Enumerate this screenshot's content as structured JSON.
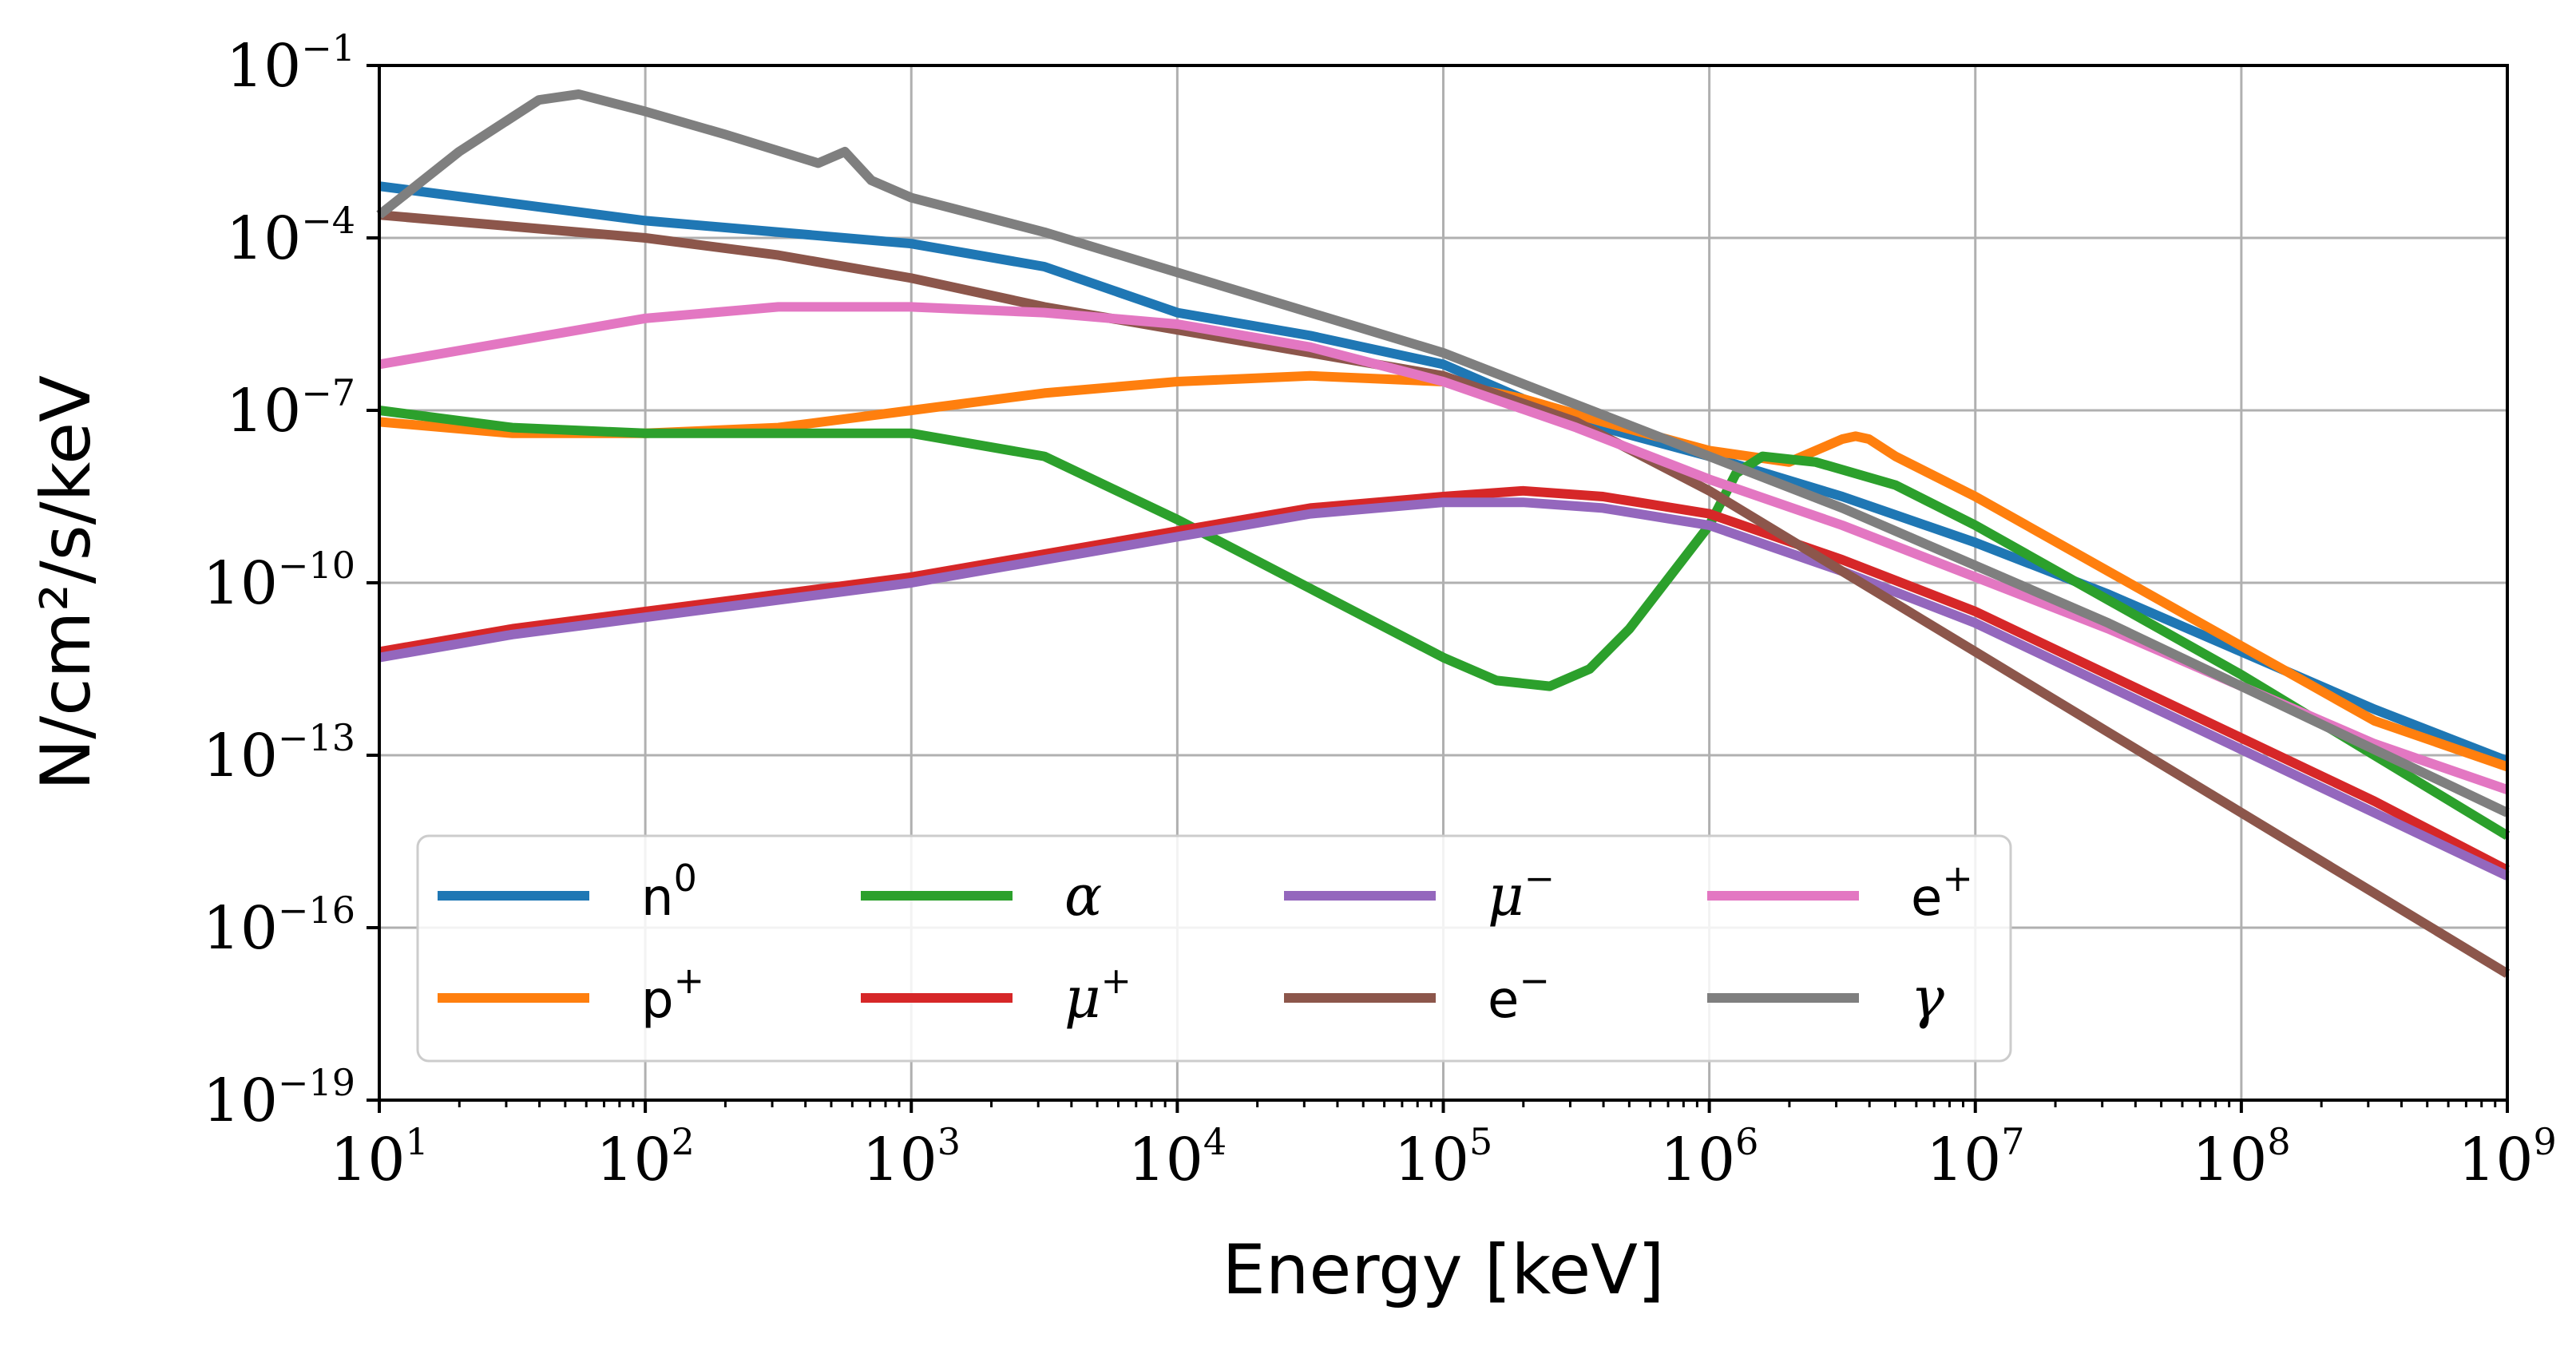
{
  "chart_data": {
    "type": "line",
    "title": "",
    "xlabel": "Energy [keV]",
    "ylabel": "N/cm²/s/keV",
    "xscale": "log",
    "yscale": "log",
    "xlim": [
      10,
      1000000000
    ],
    "ylim": [
      1e-19,
      0.1
    ],
    "grid": true,
    "legend_location": "lower-left",
    "legend_columns": 4,
    "x_ticks": [
      {
        "base": "10",
        "exp": "1"
      },
      {
        "base": "10",
        "exp": "2"
      },
      {
        "base": "10",
        "exp": "3"
      },
      {
        "base": "10",
        "exp": "4"
      },
      {
        "base": "10",
        "exp": "5"
      },
      {
        "base": "10",
        "exp": "6"
      },
      {
        "base": "10",
        "exp": "7"
      },
      {
        "base": "10",
        "exp": "8"
      },
      {
        "base": "10",
        "exp": "9"
      }
    ],
    "y_ticks": [
      {
        "base": "10",
        "exp": "−19"
      },
      {
        "base": "10",
        "exp": "−16"
      },
      {
        "base": "10",
        "exp": "−13"
      },
      {
        "base": "10",
        "exp": "−10"
      },
      {
        "base": "10",
        "exp": "−7"
      },
      {
        "base": "10",
        "exp": "−4"
      },
      {
        "base": "10",
        "exp": "−1"
      }
    ],
    "series": [
      {
        "name": "n0",
        "base": "n",
        "sup": "0",
        "italic": false,
        "color": "#1f77b4",
        "log_x": [
          1,
          2,
          3,
          3.5,
          4,
          4.5,
          5,
          5.3,
          5.6,
          6,
          6.5,
          7,
          7.5,
          8,
          8.5,
          9
        ],
        "log_y": [
          -3.1,
          -3.7,
          -4.1,
          -4.5,
          -5.3,
          -5.7,
          -6.2,
          -6.8,
          -7.3,
          -7.8,
          -8.5,
          -9.3,
          -10.2,
          -11.2,
          -12.2,
          -13.1
        ]
      },
      {
        "name": "p+",
        "base": "p",
        "sup": "+",
        "italic": false,
        "color": "#ff7f0e",
        "log_x": [
          1,
          1.5,
          2,
          2.5,
          3,
          3.5,
          4,
          4.5,
          5,
          5.3,
          5.6,
          6,
          6.3,
          6.4,
          6.5,
          6.55,
          6.6,
          6.7,
          7,
          7.5,
          8,
          8.5,
          9
        ],
        "log_y": [
          -7.2,
          -7.4,
          -7.4,
          -7.3,
          -7.0,
          -6.7,
          -6.5,
          -6.4,
          -6.5,
          -6.8,
          -7.2,
          -7.7,
          -7.9,
          -7.7,
          -7.5,
          -7.45,
          -7.5,
          -7.8,
          -8.5,
          -9.8,
          -11.1,
          -12.4,
          -13.2
        ]
      },
      {
        "name": "alpha",
        "base": "α",
        "sup": "",
        "italic": true,
        "color": "#2ca02c",
        "log_x": [
          1,
          1.5,
          2,
          2.5,
          3,
          3.5,
          4,
          4.5,
          5,
          5.2,
          5.4,
          5.55,
          5.7,
          6,
          6.1,
          6.2,
          6.4,
          6.7,
          7,
          7.5,
          8,
          8.5,
          9
        ],
        "log_y": [
          -7.0,
          -7.3,
          -7.4,
          -7.4,
          -7.4,
          -7.8,
          -8.9,
          -10.1,
          -11.3,
          -11.7,
          -11.8,
          -11.5,
          -10.8,
          -9.0,
          -8.1,
          -7.8,
          -7.9,
          -8.3,
          -9.0,
          -10.3,
          -11.6,
          -13.0,
          -14.4
        ]
      },
      {
        "name": "mu+",
        "base": "μ",
        "sup": "+",
        "italic": true,
        "color": "#d62728",
        "log_x": [
          1,
          1.5,
          2,
          2.5,
          3,
          3.5,
          4,
          4.5,
          5,
          5.3,
          5.6,
          6,
          6.5,
          7,
          7.5,
          8,
          8.5,
          9
        ],
        "log_y": [
          -11.2,
          -10.8,
          -10.5,
          -10.2,
          -9.9,
          -9.5,
          -9.1,
          -8.7,
          -8.5,
          -8.4,
          -8.5,
          -8.8,
          -9.6,
          -10.5,
          -11.6,
          -12.7,
          -13.8,
          -15.0
        ]
      },
      {
        "name": "mu-",
        "base": "μ",
        "sup": "−",
        "italic": true,
        "color": "#9467bd",
        "log_x": [
          1,
          1.5,
          2,
          2.5,
          3,
          3.5,
          4,
          4.5,
          5,
          5.3,
          5.6,
          6,
          6.5,
          7,
          7.5,
          8,
          8.5,
          9
        ],
        "log_y": [
          -11.3,
          -10.9,
          -10.6,
          -10.3,
          -10.0,
          -9.6,
          -9.2,
          -8.8,
          -8.6,
          -8.6,
          -8.7,
          -9.0,
          -9.8,
          -10.7,
          -11.8,
          -12.9,
          -14.0,
          -15.1
        ]
      },
      {
        "name": "e-",
        "base": "e",
        "sup": "−",
        "italic": false,
        "color": "#8c564b",
        "log_x": [
          1,
          1.5,
          2,
          2.5,
          3,
          3.5,
          4,
          4.5,
          5,
          5.5,
          6,
          6.5,
          7,
          7.5,
          8,
          8.5,
          9
        ],
        "log_y": [
          -3.6,
          -3.8,
          -4.0,
          -4.3,
          -4.7,
          -5.2,
          -5.6,
          -6.0,
          -6.4,
          -7.2,
          -8.4,
          -9.8,
          -11.2,
          -12.6,
          -14.0,
          -15.4,
          -16.8
        ]
      },
      {
        "name": "e+",
        "base": "e",
        "sup": "+",
        "italic": false,
        "color": "#e377c2",
        "log_x": [
          1,
          1.5,
          2,
          2.5,
          3,
          3.5,
          4,
          4.5,
          5,
          5.5,
          6,
          6.5,
          7,
          7.5,
          8,
          8.5,
          9
        ],
        "log_y": [
          -6.2,
          -5.8,
          -5.4,
          -5.2,
          -5.2,
          -5.3,
          -5.5,
          -5.9,
          -6.5,
          -7.3,
          -8.2,
          -9.0,
          -9.9,
          -10.8,
          -11.8,
          -12.8,
          -13.6
        ]
      },
      {
        "name": "gamma",
        "base": "γ",
        "sup": "",
        "italic": true,
        "color": "#7f7f7f",
        "log_x": [
          1,
          1.3,
          1.6,
          1.75,
          2,
          2.3,
          2.65,
          2.75,
          2.85,
          3,
          3.5,
          4,
          4.5,
          5,
          5.5,
          6,
          6.5,
          7,
          7.5,
          8,
          8.5,
          9
        ],
        "log_y": [
          -3.6,
          -2.5,
          -1.6,
          -1.5,
          -1.8,
          -2.2,
          -2.7,
          -2.5,
          -3.0,
          -3.3,
          -3.9,
          -4.6,
          -5.3,
          -6.0,
          -6.9,
          -7.8,
          -8.7,
          -9.7,
          -10.7,
          -11.8,
          -12.9,
          -14.0
        ]
      }
    ]
  }
}
